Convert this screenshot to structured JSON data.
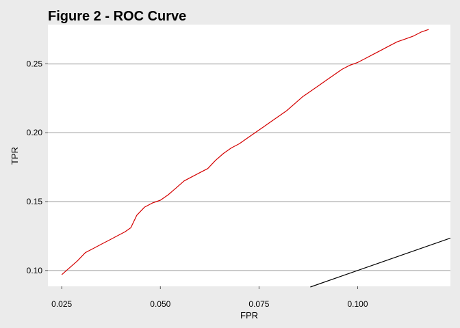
{
  "chart_data": {
    "type": "line",
    "title": "Figure 2 - ROC Curve",
    "xlabel": "FPR",
    "ylabel": "TPR",
    "xlim": [
      0.0215,
      0.1235
    ],
    "ylim": [
      0.0885,
      0.2785
    ],
    "x_ticks": [
      0.025,
      0.05,
      0.075,
      0.1
    ],
    "x_tick_labels": [
      "0.025",
      "0.050",
      "0.075",
      "0.100"
    ],
    "y_ticks": [
      0.1,
      0.15,
      0.2,
      0.25
    ],
    "y_tick_labels": [
      "0.10",
      "0.15",
      "0.20",
      "0.25"
    ],
    "grid": "horizontal",
    "series": [
      {
        "color": "#d40000",
        "x": [
          0.025,
          0.027,
          0.029,
          0.031,
          0.033,
          0.035,
          0.037,
          0.039,
          0.041,
          0.0425,
          0.044,
          0.046,
          0.048,
          0.05,
          0.052,
          0.054,
          0.056,
          0.058,
          0.06,
          0.062,
          0.064,
          0.066,
          0.068,
          0.07,
          0.072,
          0.074,
          0.076,
          0.078,
          0.08,
          0.082,
          0.084,
          0.086,
          0.088,
          0.09,
          0.092,
          0.094,
          0.096,
          0.098,
          0.1,
          0.102,
          0.104,
          0.106,
          0.108,
          0.11,
          0.112,
          0.114,
          0.116,
          0.118
        ],
        "y": [
          0.097,
          0.102,
          0.107,
          0.113,
          0.116,
          0.119,
          0.122,
          0.125,
          0.128,
          0.131,
          0.14,
          0.146,
          0.149,
          0.151,
          0.155,
          0.16,
          0.165,
          0.168,
          0.171,
          0.174,
          0.18,
          0.185,
          0.189,
          0.192,
          0.196,
          0.2,
          0.204,
          0.208,
          0.212,
          0.216,
          0.221,
          0.226,
          0.23,
          0.234,
          0.238,
          0.242,
          0.246,
          0.249,
          0.251,
          0.254,
          0.257,
          0.26,
          0.263,
          0.266,
          0.268,
          0.27,
          0.273,
          0.275
        ]
      },
      {
        "color": "#000000",
        "x": [
          0.088,
          0.1235
        ],
        "y": [
          0.088,
          0.1235
        ]
      }
    ]
  }
}
